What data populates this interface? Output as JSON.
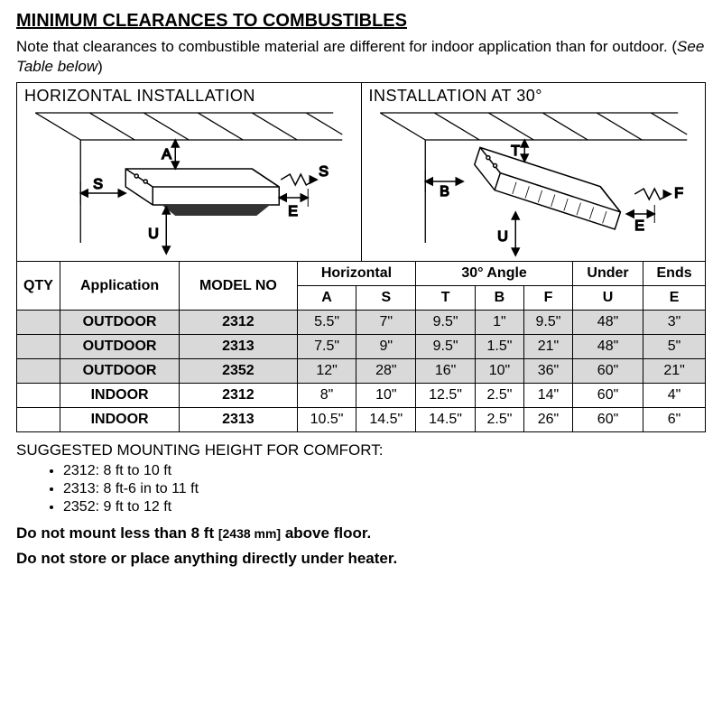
{
  "title": "MINIMUM CLEARANCES TO COMBUSTIBLES",
  "note_pre": "Note that clearances to combustible material are different for indoor application than for outdoor. (",
  "note_italic": "See Table below",
  "note_post": ")",
  "diagrams": {
    "left_header": "HORIZONTAL INSTALLATION",
    "right_header": "INSTALLATION AT 30°",
    "left_labels": {
      "A": "A",
      "S1": "S",
      "S2": "S",
      "U": "U",
      "E": "E"
    },
    "right_labels": {
      "T": "T",
      "B": "B",
      "F": "F",
      "U": "U",
      "E": "E"
    }
  },
  "table": {
    "headers": {
      "qty": "QTY",
      "application": "Application",
      "model": "MODEL NO",
      "horizontal": "Horizontal",
      "angle": "30° Angle",
      "under": "Under",
      "ends": "Ends",
      "A": "A",
      "S": "S",
      "T": "T",
      "B": "B",
      "F": "F",
      "U": "U",
      "E": "E"
    },
    "rows": [
      {
        "shaded": true,
        "qty": "",
        "app": "OUTDOOR",
        "model": "2312",
        "A": "5.5\"",
        "S": "7\"",
        "T": "9.5\"",
        "B": "1\"",
        "F": "9.5\"",
        "U": "48\"",
        "E": "3\""
      },
      {
        "shaded": true,
        "qty": "",
        "app": "OUTDOOR",
        "model": "2313",
        "A": "7.5\"",
        "S": "9\"",
        "T": "9.5\"",
        "B": "1.5\"",
        "F": "21\"",
        "U": "48\"",
        "E": "5\""
      },
      {
        "shaded": true,
        "qty": "",
        "app": "OUTDOOR",
        "model": "2352",
        "A": "12\"",
        "S": "28\"",
        "T": "16\"",
        "B": "10\"",
        "F": "36\"",
        "U": "60\"",
        "E": "21\""
      },
      {
        "shaded": false,
        "qty": "",
        "app": "INDOOR",
        "model": "2312",
        "A": "8\"",
        "S": "10\"",
        "T": "12.5\"",
        "B": "2.5\"",
        "F": "14\"",
        "U": "60\"",
        "E": "4\"",
        "thick": true
      },
      {
        "shaded": false,
        "qty": "",
        "app": "INDOOR",
        "model": "2313",
        "A": "10.5\"",
        "S": "14.5\"",
        "T": "14.5\"",
        "B": "2.5\"",
        "F": "26\"",
        "U": "60\"",
        "E": "6\""
      }
    ]
  },
  "mount_heading": "SUGGESTED MOUNTING HEIGHT FOR COMFORT:",
  "mount_items": [
    "2312: 8 ft to 10 ft",
    "2313: 8 ft-6 in to 11 ft",
    "2352: 9 ft to 12 ft"
  ],
  "warning1_pre": "Do not mount less than 8 ft ",
  "warning1_mm": "[2438 mm]",
  "warning1_post": " above floor.",
  "warning2": "Do not store or place anything directly under heater."
}
